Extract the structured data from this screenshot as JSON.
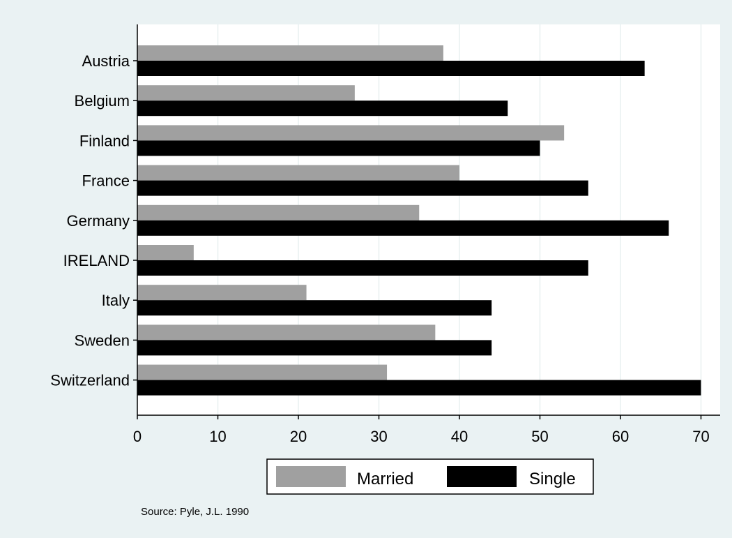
{
  "chart_data": {
    "type": "bar",
    "orientation": "horizontal",
    "categories": [
      "Austria",
      "Belgium",
      "Finland",
      "France",
      "Germany",
      "IRELAND",
      "Italy",
      "Sweden",
      "Switzerland"
    ],
    "series": [
      {
        "name": "Married",
        "values": [
          38,
          27,
          53,
          40,
          35,
          7,
          21,
          37,
          31
        ]
      },
      {
        "name": "Single",
        "values": [
          63,
          46,
          50,
          56,
          66,
          56,
          44,
          44,
          70
        ]
      }
    ],
    "x_ticks": [
      0,
      10,
      20,
      30,
      40,
      50,
      60,
      70
    ],
    "xlim": [
      0,
      72.5
    ],
    "grid": true,
    "legend_position": "bottom",
    "note": "Source: Pyle, J.L. 1990"
  },
  "colors": {
    "background": "#eaf2f3",
    "plot_background": "#ffffff",
    "grid": "#e8f0f0",
    "married": "#a0a0a0",
    "single": "#000000"
  }
}
